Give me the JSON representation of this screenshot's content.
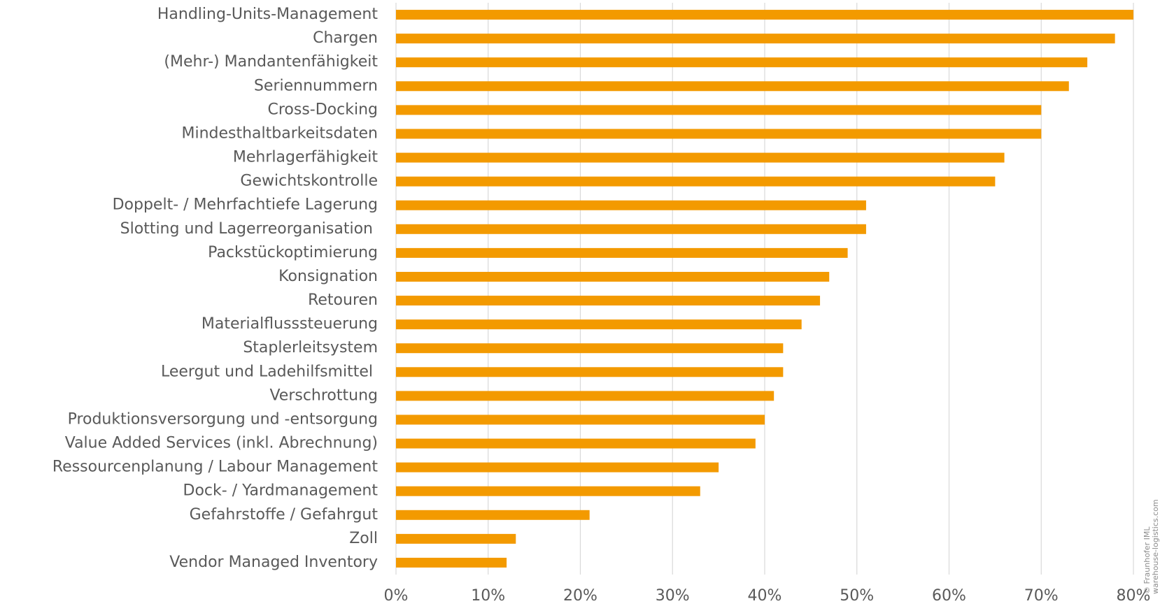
{
  "chart_data": {
    "type": "bar",
    "categories": [
      "Handling-Units-Management",
      "Chargen",
      "(Mehr-) Mandantenfähigkeit",
      "Seriennummern",
      "Cross-Docking",
      "Mindesthaltbarkeitsdaten",
      "Mehrlagerfähigkeit",
      "Gewichtskontrolle",
      "Doppelt- / Mehrfachtiefe Lagerung",
      "Slotting und Lagerreorganisation ",
      "Packstückoptimierung",
      "Konsignation",
      "Retouren",
      "Materialflusssteuerung",
      "Staplerleitsystem",
      "Leergut und Ladehilfsmittel ",
      "Verschrottung",
      "Produktionsversorgung und -entsorgung",
      "Value Added Services (inkl. Abrechnung)",
      "Ressourcenplanung / Labour Management",
      "Dock- / Yardmanagement",
      "Gefahrstoffe / Gefahrgut",
      "Zoll",
      "Vendor Managed Inventory"
    ],
    "values": [
      80,
      78,
      75,
      73,
      70,
      70,
      66,
      65,
      51,
      51,
      49,
      47,
      46,
      44,
      42,
      42,
      41,
      40,
      39,
      35,
      33,
      21,
      13,
      12
    ],
    "color": "#f39a00",
    "xlim": [
      0,
      80
    ],
    "xticks": [
      {
        "value": 0,
        "label": "0%"
      },
      {
        "value": 10,
        "label": "10%"
      },
      {
        "value": 20,
        "label": "20%"
      },
      {
        "value": 30,
        "label": "30%"
      },
      {
        "value": 40,
        "label": "40%"
      },
      {
        "value": 50,
        "label": "50%"
      },
      {
        "value": 60,
        "label": "60%"
      },
      {
        "value": 70,
        "label": "70%"
      },
      {
        "value": 80,
        "label": "80%"
      }
    ],
    "grid": true,
    "annotations": [
      "© Fraunhofer IML",
      "warehouse-logistics.com"
    ]
  }
}
